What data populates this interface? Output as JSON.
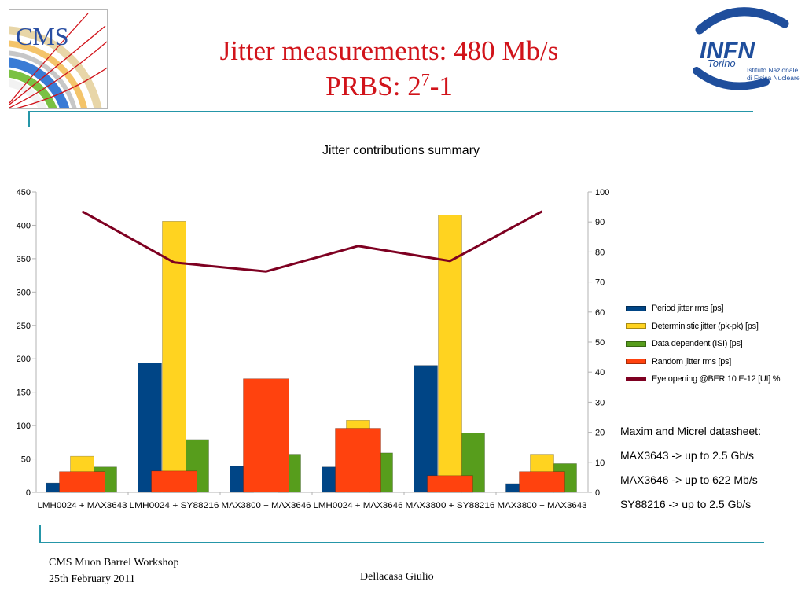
{
  "slide": {
    "title_line1": "Jitter measurements: 480 Mb/s",
    "title_line2_base": "PRBS: 2",
    "title_line2_exp": "7",
    "title_line2_tail": "-1",
    "logo_cms_text": "CMS",
    "logo_infn_text": "INFN",
    "logo_infn_sub": "Torino",
    "logo_infn_line1": "Istituto Nazionale",
    "logo_infn_line2": "di Fisica Nucleare"
  },
  "notes": [
    "Maxim and Micrel datasheet:",
    "MAX3643 -> up to 2.5 Gb/s",
    "MAX3646 -> up to 622 Mb/s",
    "SY88216 -> up to 2.5 Gb/s"
  ],
  "footer": {
    "workshop": "CMS Muon Barrel Workshop",
    "date": "25th February 2011",
    "author": "Dellacasa Giulio"
  },
  "chart_data": {
    "type": "bar",
    "title": "Jitter contributions summary",
    "categories": [
      "LMH0024 + MAX3643",
      "LMH0024 + SY88216",
      "MAX3800 + MAX3646",
      "LMH0024 + MAX3646",
      "MAX3800 + SY88216",
      "MAX3800 + MAX3643"
    ],
    "ylim": [
      0,
      450
    ],
    "yticks": [
      0,
      50,
      100,
      150,
      200,
      250,
      300,
      350,
      400,
      450
    ],
    "y2lim": [
      0,
      100
    ],
    "y2ticks": [
      0,
      10,
      20,
      30,
      40,
      50,
      60,
      70,
      80,
      90,
      100
    ],
    "grid": false,
    "legend_position": "right",
    "series": [
      {
        "name": "Period jitter rms [ps]",
        "color": "#004586",
        "axis": "left",
        "values": [
          14,
          194,
          39,
          38,
          190,
          13
        ]
      },
      {
        "name": "Deterministic jitter (pk-pk) [ps]",
        "color": "#ffd320",
        "axis": "left",
        "values": [
          54,
          406,
          0,
          108,
          415,
          57
        ]
      },
      {
        "name": "Data dependent (ISI) [ps]",
        "color": "#579d1c",
        "axis": "left",
        "values": [
          38,
          79,
          57,
          59,
          89,
          43
        ]
      },
      {
        "name": "Random jitter rms [ps]",
        "color": "#ff420e",
        "axis": "left",
        "values": [
          31,
          32,
          170,
          96,
          25,
          31
        ]
      },
      {
        "name": "Eye opening @BER 10 E-12 [UI] %",
        "color": "#7e0021",
        "axis": "right",
        "type": "line",
        "values": [
          93.5,
          76.5,
          73.5,
          82,
          77,
          93.5
        ]
      }
    ]
  }
}
